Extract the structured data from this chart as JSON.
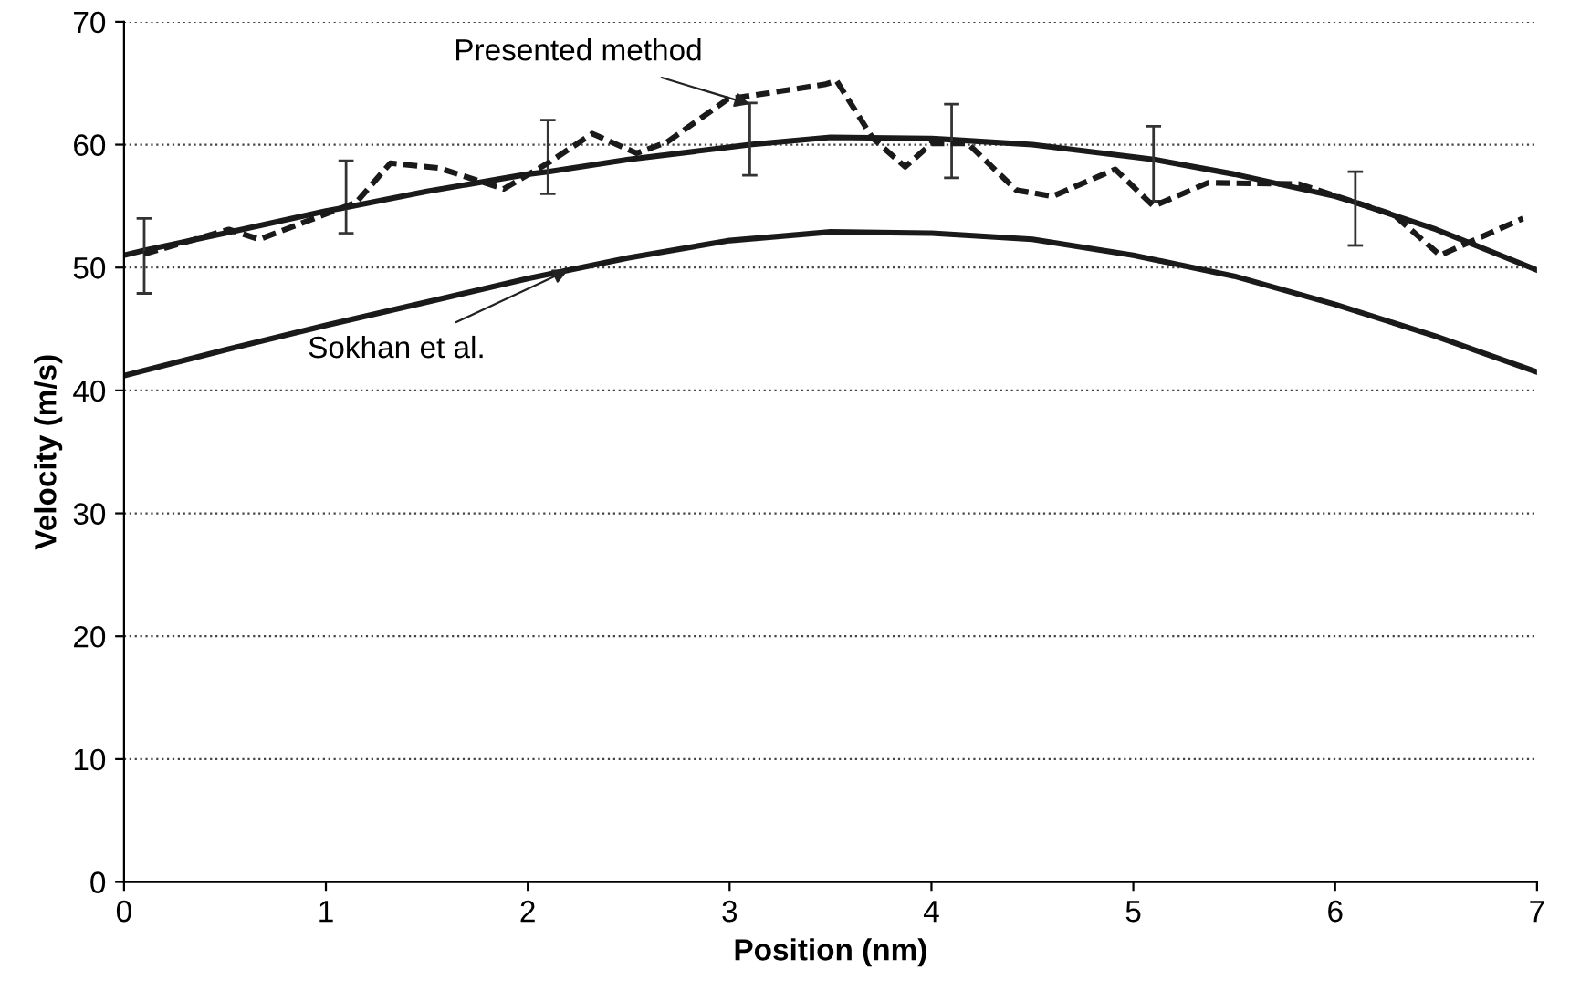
{
  "chart_data": {
    "type": "line",
    "xlabel": "Position (nm)",
    "ylabel": "Velocity (m/s)",
    "xlim": [
      0,
      7
    ],
    "ylim": [
      0,
      70
    ],
    "xticks": [
      0,
      1,
      2,
      3,
      4,
      5,
      6,
      7
    ],
    "yticks": [
      0,
      10,
      20,
      30,
      40,
      50,
      60,
      70
    ],
    "grid": "y",
    "legend": false,
    "series": [
      {
        "color": "#1a1a1a",
        "line_style": "solid",
        "x": [
          0,
          0.1,
          0.5,
          1,
          1.1,
          1.5,
          2,
          2.1,
          2.5,
          3,
          3.1,
          3.5,
          4,
          4.1,
          4.5,
          5,
          5.1,
          5.5,
          6,
          6.1,
          6.5,
          7
        ],
        "values": [
          51,
          51.4,
          52.8,
          54.6,
          54.9,
          56.2,
          57.6,
          57.8,
          58.8,
          59.8,
          60,
          60.6,
          60.5,
          60.4,
          60,
          59,
          58.8,
          57.6,
          55.8,
          55.3,
          53.1,
          49.8
        ],
        "errors": [
          null,
          [
            47.9,
            54
          ],
          null,
          null,
          [
            52.8,
            58.7
          ],
          null,
          null,
          [
            56,
            62
          ],
          null,
          null,
          [
            57.5,
            63.4
          ],
          null,
          null,
          [
            57.3,
            63.3
          ],
          null,
          null,
          [
            55.4,
            61.5
          ],
          null,
          null,
          [
            51.8,
            57.8
          ],
          null,
          null
        ]
      },
      {
        "color": "#1a1a1a",
        "line_style": "solid",
        "x": [
          0,
          0.5,
          1,
          1.5,
          2,
          2.5,
          3,
          3.5,
          4,
          4.5,
          5,
          5.5,
          6,
          6.5,
          7
        ],
        "values": [
          41.2,
          43.3,
          45.3,
          47.2,
          49.1,
          50.8,
          52.2,
          52.9,
          52.8,
          52.3,
          51,
          49.3,
          47,
          44.4,
          41.5
        ]
      },
      {
        "color": "#1a1a1a",
        "line_style": "dashed",
        "x": [
          0.1,
          0.52,
          0.67,
          1.15,
          1.32,
          1.56,
          1.88,
          2.1,
          2.32,
          2.54,
          2.69,
          2.99,
          3.47,
          3.53,
          3.71,
          3.87,
          4,
          4.18,
          4.42,
          4.6,
          4.91,
          5.1,
          5.37,
          5.82,
          6.29,
          6.52,
          6.93
        ],
        "values": [
          51.1,
          53.1,
          52.3,
          55.3,
          58.5,
          58.1,
          56.4,
          58.5,
          60.9,
          59.3,
          60.2,
          63.7,
          64.9,
          65.2,
          60.5,
          58.2,
          60.1,
          60.1,
          56.3,
          55.8,
          58,
          55,
          56.9,
          56.8,
          54.3,
          51,
          54
        ]
      }
    ],
    "annotations": [
      {
        "text": "Presented method",
        "x": 3.1,
        "y": 63.3
      },
      {
        "text": "Sokhan et al.",
        "x": 2.2,
        "y": 49.8
      }
    ]
  }
}
